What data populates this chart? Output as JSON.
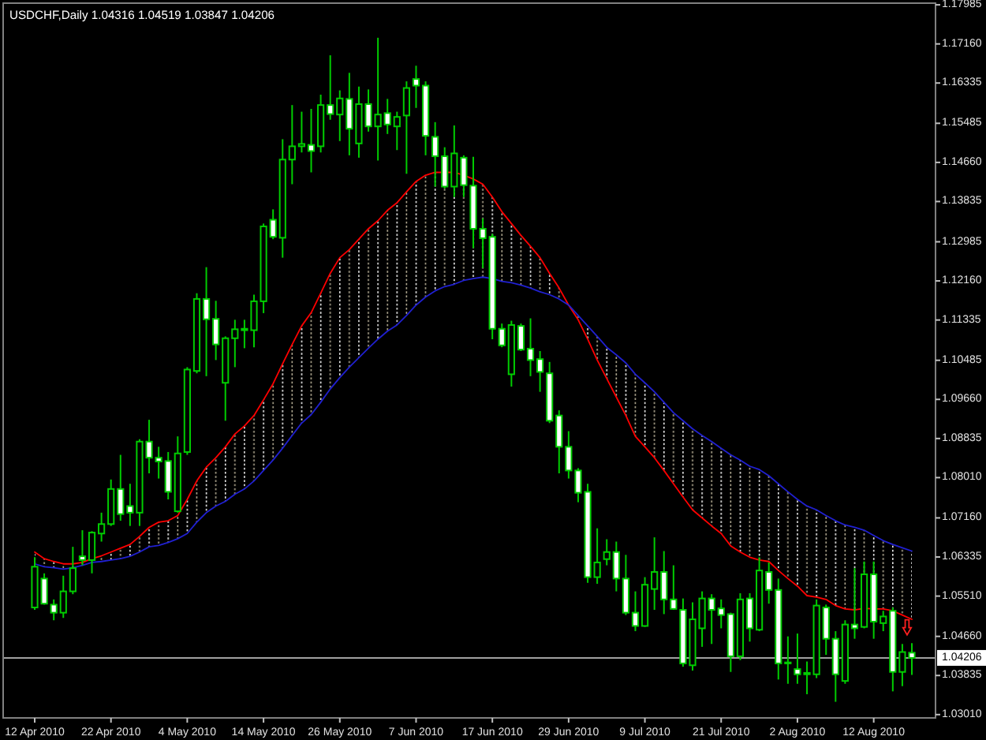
{
  "chart_data": {
    "type": "candlestick",
    "title": "USDCHF,Daily 1.04316 1.04519 1.03847 1.04206",
    "categories": [
      "12 Apr 2010",
      null,
      null,
      null,
      null,
      null,
      null,
      null,
      "22 Apr 2010",
      null,
      null,
      null,
      null,
      null,
      null,
      null,
      "4 May 2010",
      null,
      null,
      null,
      null,
      null,
      null,
      null,
      "14 May 2010",
      null,
      null,
      null,
      null,
      null,
      null,
      null,
      "26 May 2010",
      null,
      null,
      null,
      null,
      null,
      null,
      null,
      "7 Jun 2010",
      null,
      null,
      null,
      null,
      null,
      null,
      null,
      "17 Jun 2010",
      null,
      null,
      null,
      null,
      null,
      null,
      null,
      "29 Jun 2010",
      null,
      null,
      null,
      null,
      null,
      null,
      null,
      "9 Jul 2010",
      null,
      null,
      null,
      null,
      null,
      null,
      null,
      "21 Jul 2010",
      null,
      null,
      null,
      null,
      null,
      null,
      null,
      "2 Aug 2010",
      null,
      null,
      null,
      null,
      null,
      null,
      null,
      "12 Aug 2010",
      null,
      null,
      null,
      null
    ],
    "color": "#00cc00",
    "ohlc": [
      [
        1.0527,
        1.0633,
        1.0522,
        1.0613
      ],
      [
        1.0588,
        1.0599,
        1.0533,
        1.0535
      ],
      [
        1.0533,
        1.0544,
        1.05,
        1.0516
      ],
      [
        1.0516,
        1.0594,
        1.0505,
        1.0561
      ],
      [
        1.0561,
        1.0655,
        1.0555,
        1.061
      ],
      [
        1.0635,
        1.069,
        1.0616,
        1.0627
      ],
      [
        1.0627,
        1.0688,
        1.0599,
        1.0685
      ],
      [
        1.0683,
        1.0727,
        1.0666,
        1.0703
      ],
      [
        1.0703,
        1.0797,
        1.0699,
        1.0777
      ],
      [
        1.0777,
        1.0849,
        1.071,
        1.0724
      ],
      [
        1.0741,
        1.0788,
        1.0699,
        1.0727
      ],
      [
        1.0727,
        1.0882,
        1.0699,
        1.0877
      ],
      [
        1.0877,
        1.0923,
        1.081,
        1.0843
      ],
      [
        1.0843,
        1.0866,
        1.0799,
        1.0835
      ],
      [
        1.0836,
        1.0855,
        1.0755,
        1.0771
      ],
      [
        1.073,
        1.0888,
        1.0727,
        1.0852
      ],
      [
        1.0855,
        1.1034,
        1.0849,
        1.1029
      ],
      [
        1.1026,
        1.119,
        1.1021,
        1.1178
      ],
      [
        1.1178,
        1.1245,
        1.1015,
        1.1135
      ],
      [
        1.1136,
        1.1174,
        1.1049,
        1.1082
      ],
      [
        1.1001,
        1.1099,
        1.0921,
        1.1095
      ],
      [
        1.1095,
        1.1134,
        1.1034,
        1.1114
      ],
      [
        1.1115,
        1.1134,
        1.1074,
        1.1112
      ],
      [
        1.1112,
        1.1187,
        1.1076,
        1.1173
      ],
      [
        1.1173,
        1.1337,
        1.1148,
        1.1331
      ],
      [
        1.1345,
        1.1367,
        1.1304,
        1.1309
      ],
      [
        1.1307,
        1.1515,
        1.1265,
        1.1472
      ],
      [
        1.1472,
        1.1587,
        1.142,
        1.15
      ],
      [
        1.15,
        1.1573,
        1.1487,
        1.1505
      ],
      [
        1.1503,
        1.1579,
        1.1445,
        1.149
      ],
      [
        1.15,
        1.1609,
        1.1487,
        1.1587
      ],
      [
        1.1587,
        1.1692,
        1.1556,
        1.1568
      ],
      [
        1.1567,
        1.1618,
        1.1511,
        1.1601
      ],
      [
        1.16,
        1.1655,
        1.1481,
        1.1537
      ],
      [
        1.1506,
        1.1626,
        1.1476,
        1.1589
      ],
      [
        1.1589,
        1.162,
        1.1531,
        1.1542
      ],
      [
        1.1542,
        1.1729,
        1.147,
        1.1567
      ],
      [
        1.157,
        1.16,
        1.1526,
        1.1546
      ],
      [
        1.1542,
        1.1573,
        1.1492,
        1.1562
      ],
      [
        1.1565,
        1.1637,
        1.1442,
        1.1623
      ],
      [
        1.1642,
        1.167,
        1.1581,
        1.1628
      ],
      [
        1.1628,
        1.1637,
        1.1481,
        1.1522
      ],
      [
        1.152,
        1.1551,
        1.1415,
        1.1479
      ],
      [
        1.1479,
        1.1498,
        1.1411,
        1.1415
      ],
      [
        1.1415,
        1.1544,
        1.1393,
        1.1485
      ],
      [
        1.1476,
        1.1481,
        1.1393,
        1.1418
      ],
      [
        1.1417,
        1.1478,
        1.1285,
        1.1326
      ],
      [
        1.1326,
        1.1348,
        1.1243,
        1.1306
      ],
      [
        1.1309,
        1.1315,
        1.1093,
        1.1115
      ],
      [
        1.1115,
        1.1126,
        1.1076,
        1.108
      ],
      [
        1.1019,
        1.1132,
        1.0993,
        1.1123
      ],
      [
        1.1121,
        1.1126,
        1.1068,
        1.1071
      ],
      [
        1.1073,
        1.1137,
        1.1015,
        1.1049
      ],
      [
        1.1051,
        1.1068,
        1.0982,
        1.1024
      ],
      [
        1.1021,
        1.1045,
        1.0916,
        1.0921
      ],
      [
        1.0932,
        1.0943,
        1.081,
        1.0866
      ],
      [
        1.0866,
        1.0899,
        1.0799,
        1.0816
      ],
      [
        1.0816,
        1.0821,
        1.0749,
        1.0769
      ],
      [
        1.0771,
        1.0788,
        1.0579,
        1.0591
      ],
      [
        1.0591,
        1.0694,
        1.0577,
        1.0622
      ],
      [
        1.0629,
        1.0671,
        1.0616,
        1.0644
      ],
      [
        1.0644,
        1.0666,
        1.0561,
        1.0588
      ],
      [
        1.0588,
        1.0638,
        1.0511,
        1.0516
      ],
      [
        1.0516,
        1.0561,
        1.0477,
        1.0488
      ],
      [
        1.0488,
        1.0591,
        1.0486,
        1.0575
      ],
      [
        1.0566,
        1.0675,
        1.0522,
        1.0602
      ],
      [
        1.0602,
        1.0646,
        1.0513,
        1.0544
      ],
      [
        1.0544,
        1.0616,
        1.0522,
        1.0524
      ],
      [
        1.0522,
        1.0546,
        1.0402,
        1.0409
      ],
      [
        1.0405,
        1.0538,
        1.0394,
        1.0502
      ],
      [
        1.0483,
        1.0561,
        1.0444,
        1.0546
      ],
      [
        1.0546,
        1.0555,
        1.045,
        1.0522
      ],
      [
        1.0525,
        1.0544,
        1.0483,
        1.0511
      ],
      [
        1.0513,
        1.0516,
        1.0391,
        1.0424
      ],
      [
        1.0424,
        1.0557,
        1.0416,
        1.0544
      ],
      [
        1.0546,
        1.0557,
        1.0455,
        1.0483
      ],
      [
        1.048,
        1.0633,
        1.0477,
        1.0605
      ],
      [
        1.0602,
        1.0622,
        1.0535,
        1.0564
      ],
      [
        1.0564,
        1.0588,
        1.0375,
        1.0409
      ],
      [
        1.0409,
        1.0466,
        1.0366,
        1.0411
      ],
      [
        1.0397,
        1.0472,
        1.0366,
        1.0386
      ],
      [
        1.0389,
        1.0413,
        1.0344,
        1.0386
      ],
      [
        1.0386,
        1.0544,
        1.0378,
        1.0531
      ],
      [
        1.0527,
        1.0533,
        1.0427,
        1.0461
      ],
      [
        1.0461,
        1.0477,
        1.0328,
        1.0386
      ],
      [
        1.0372,
        1.05,
        1.0366,
        1.0491
      ],
      [
        1.0491,
        1.061,
        1.0461,
        1.0483
      ],
      [
        1.0486,
        1.0624,
        1.0483,
        1.0597
      ],
      [
        1.0597,
        1.0624,
        1.0461,
        1.0497
      ],
      [
        1.0494,
        1.052,
        1.0477,
        1.0508
      ],
      [
        1.052,
        1.0527,
        1.035,
        1.0391
      ],
      [
        1.0391,
        1.045,
        1.0361,
        1.0433
      ],
      [
        1.04316,
        1.04519,
        1.03847,
        1.04206
      ]
    ],
    "series": [
      {
        "type": "line",
        "color": "#ff0000",
        "values": [
          1.0644,
          1.063,
          1.0624,
          1.0619,
          1.0619,
          1.0622,
          1.063,
          1.0636,
          1.0644,
          1.0652,
          1.066,
          1.0677,
          1.0696,
          1.0707,
          1.071,
          1.0721,
          1.0755,
          1.0794,
          1.0823,
          1.0843,
          1.0866,
          1.0893,
          1.091,
          1.0932,
          1.0965,
          1.0999,
          1.1041,
          1.1082,
          1.1121,
          1.1149,
          1.119,
          1.1232,
          1.1265,
          1.1282,
          1.1304,
          1.1326,
          1.1343,
          1.1365,
          1.1381,
          1.1404,
          1.1426,
          1.1439,
          1.1445,
          1.1445,
          1.1445,
          1.1439,
          1.1431,
          1.142,
          1.1393,
          1.1362,
          1.1337,
          1.1312,
          1.1289,
          1.1265,
          1.1232,
          1.1201,
          1.1165,
          1.1134,
          1.1093,
          1.1049,
          1.101,
          1.0971,
          1.0932,
          1.0888,
          1.0866,
          1.0843,
          1.0816,
          1.0788,
          1.076,
          1.0733,
          1.0716,
          1.0699,
          1.0683,
          1.0657,
          1.0644,
          1.0633,
          1.0627,
          1.0624,
          1.0605,
          1.0588,
          1.0572,
          1.0552,
          1.0549,
          1.0544,
          1.0531,
          1.0524,
          1.0522,
          1.0525,
          1.0524,
          1.0524,
          1.052,
          1.0511,
          1.0502
        ],
        "upper": [
          1.0644,
          1.063,
          1.0624,
          1.0619,
          1.0619,
          1.0622,
          1.063,
          1.0636,
          1.0644,
          1.0652,
          1.066,
          1.0677,
          1.0696,
          1.0707,
          1.071,
          1.0721,
          1.0755,
          1.0794,
          1.0823,
          1.0843,
          1.0866,
          1.0893,
          1.091,
          1.0932,
          1.0965,
          1.0999,
          1.1041,
          1.1082,
          1.1121,
          1.1149,
          1.119,
          1.1232,
          1.1265,
          1.1282,
          1.1304,
          1.1326,
          1.1343,
          1.1365,
          1.1381,
          1.1404,
          1.1426,
          1.1439,
          1.1445,
          1.1445,
          1.1445,
          1.1439,
          1.1431,
          1.142,
          1.1393,
          1.1362,
          1.1337,
          1.1312,
          1.1289,
          1.1265,
          1.1232,
          1.1201,
          1.1165,
          1.1143,
          1.1121,
          1.1099,
          1.1076,
          1.106,
          1.1043,
          1.1019,
          1.1001,
          1.0982,
          1.096,
          1.0938,
          1.0921,
          1.0904,
          1.089,
          1.0877,
          1.0863,
          1.0849,
          1.0838,
          1.0825,
          1.0818,
          1.0805,
          1.0788,
          1.0771,
          1.0755,
          1.0741,
          1.0733,
          1.0721,
          1.071,
          1.0701,
          1.0696,
          1.069,
          1.0679,
          1.0668,
          1.066,
          1.0653,
          1.0646
        ],
        "lower": [
          1.0619,
          1.0613,
          1.0611,
          1.0608,
          1.0611,
          1.0616,
          1.0622,
          1.0624,
          1.0627,
          1.063,
          1.0635,
          1.0644,
          1.0655,
          1.0658,
          1.0664,
          1.0672,
          1.0683,
          1.0707,
          1.0727,
          1.0741,
          1.0751,
          1.0766,
          1.0777,
          1.0794,
          1.0816,
          1.0838,
          1.0863,
          1.089,
          1.0916,
          1.0934,
          1.096,
          1.0988,
          1.1012,
          1.1034,
          1.1054,
          1.1074,
          1.1093,
          1.111,
          1.1123,
          1.1143,
          1.1165,
          1.1182,
          1.1195,
          1.1204,
          1.1209,
          1.1217,
          1.1221,
          1.1224,
          1.1221,
          1.1215,
          1.1212,
          1.1207,
          1.1201,
          1.1193,
          1.1187,
          1.1178,
          1.1165,
          1.1134,
          1.1093,
          1.1049,
          1.101,
          1.0971,
          1.0932,
          1.0888,
          1.0866,
          1.0843,
          1.0816,
          1.0788,
          1.076,
          1.0733,
          1.0716,
          1.0699,
          1.0683,
          1.0657,
          1.0644,
          1.0633,
          1.0627,
          1.0624,
          1.0605,
          1.0588,
          1.0572,
          1.0552,
          1.0549,
          1.0544,
          1.0531,
          1.0524,
          1.0522,
          1.0525,
          1.0524,
          1.0524,
          1.052,
          1.0511,
          1.0502
        ]
      },
      {
        "type": "line",
        "color": "#2020d0",
        "values": [
          1.0619,
          1.0613,
          1.0611,
          1.0608,
          1.0611,
          1.0616,
          1.0622,
          1.0624,
          1.0627,
          1.063,
          1.0635,
          1.0644,
          1.0655,
          1.0658,
          1.0664,
          1.0672,
          1.0683,
          1.0707,
          1.0727,
          1.0741,
          1.0751,
          1.0766,
          1.0777,
          1.0794,
          1.0816,
          1.0838,
          1.0863,
          1.089,
          1.0916,
          1.0934,
          1.096,
          1.0988,
          1.1012,
          1.1034,
          1.1054,
          1.1074,
          1.1093,
          1.111,
          1.1123,
          1.1143,
          1.1165,
          1.1182,
          1.1195,
          1.1204,
          1.1209,
          1.1217,
          1.1221,
          1.1224,
          1.1221,
          1.1215,
          1.1212,
          1.1207,
          1.1201,
          1.1193,
          1.1187,
          1.1178,
          1.1165,
          1.1143,
          1.1121,
          1.1099,
          1.1076,
          1.106,
          1.1043,
          1.1019,
          1.1001,
          1.0982,
          1.096,
          1.0938,
          1.0921,
          1.0904,
          1.089,
          1.0877,
          1.0863,
          1.0849,
          1.0838,
          1.0825,
          1.0818,
          1.0805,
          1.0788,
          1.0771,
          1.0755,
          1.0741,
          1.0733,
          1.0721,
          1.071,
          1.0701,
          1.0696,
          1.069,
          1.0679,
          1.0668,
          1.066,
          1.0653,
          1.0646
        ]
      }
    ],
    "ylim": [
      1.0294,
      1.1802
    ],
    "yticks": [
      1.17985,
      {
        "value": 1.1716,
        "label": "1.17160"
      },
      1.16335,
      1.15485,
      {
        "value": 1.1466,
        "label": "1.14660"
      },
      1.13835,
      1.12985,
      {
        "value": 1.1216,
        "label": "1.12160"
      },
      1.11335,
      1.10485,
      {
        "value": 1.0966,
        "label": "1.09660"
      },
      1.08835,
      {
        "value": 1.0801,
        "label": "1.08010"
      },
      {
        "value": 1.0716,
        "label": "1.07160"
      },
      1.06335,
      {
        "value": 1.0551,
        "label": "1.05510"
      },
      {
        "value": 1.0466,
        "label": "1.04660"
      },
      1.03835,
      {
        "value": 1.0301,
        "label": "1.03010"
      }
    ],
    "ref_lines": [
      {
        "axis": "y",
        "value": 1.04206,
        "label": "1.04206",
        "color": "#a0a0a0"
      }
    ]
  }
}
